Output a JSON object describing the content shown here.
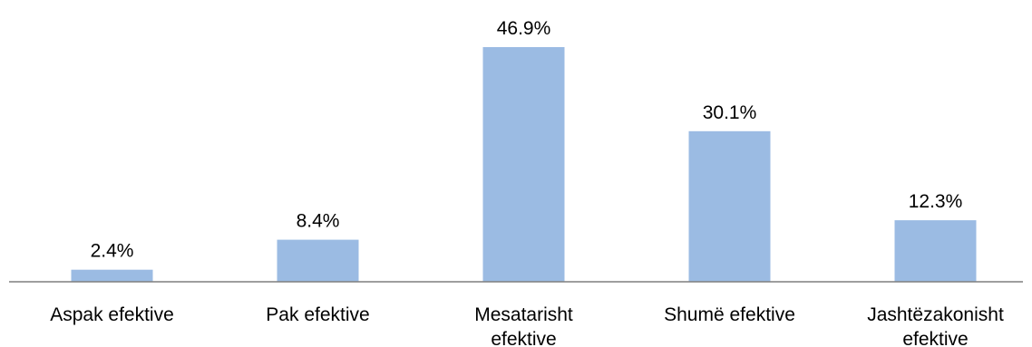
{
  "colors": {
    "bar": "#9bbbe3",
    "axis": "#7f7f7f",
    "text": "#000000"
  },
  "chart_data": {
    "type": "bar",
    "title": "",
    "xlabel": "",
    "ylabel": "",
    "categories": [
      [
        "Aspak efektive"
      ],
      [
        "Pak efektive"
      ],
      [
        "Mesatarisht",
        "efektive"
      ],
      [
        "Shumë efektive"
      ],
      [
        "Jashtëzakonisht",
        "efektive"
      ]
    ],
    "values": [
      2.4,
      8.4,
      46.9,
      30.1,
      12.3
    ],
    "value_labels": [
      "2.4%",
      "8.4%",
      "46.9%",
      "30.1%",
      "12.3%"
    ],
    "ylim": [
      0,
      50
    ],
    "grid": false,
    "legend": "none"
  }
}
